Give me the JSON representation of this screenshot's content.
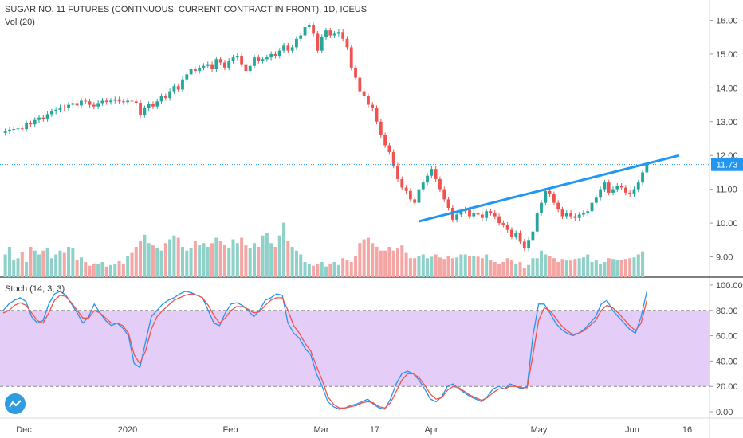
{
  "header": {
    "title": "SUGAR NO. 11 FUTURES (CONTINUOUS: CURRENT CONTRACT IN FRONT), 1D, ICEUS",
    "volume_legend": "Vol (20)",
    "stoch_legend": "Stoch (14, 3, 3)"
  },
  "colors": {
    "up": "#26a69a",
    "down": "#ef5350",
    "up_vol": "#8fd0c8",
    "down_vol": "#f4a6a4",
    "trendline": "#2196f3",
    "price_tag": "#2196f3",
    "stoch_k": "#2196f3",
    "stoch_d": "#ef5350",
    "stoch_band": "#e4cdf7"
  },
  "chart_data": [
    {
      "type": "candlestick",
      "title": "SUGAR NO. 11 FUTURES (CONTINUOUS: CURRENT CONTRACT IN FRONT), 1D, ICEUS",
      "ylim": [
        8.4,
        16.6
      ],
      "y_ticks": [
        "16.00",
        "15.00",
        "14.00",
        "13.00",
        "12.00",
        "11.00",
        "10.00",
        "9.00"
      ],
      "x_ticks": [
        "Dec",
        "2020",
        "Feb",
        "Mar",
        "17",
        "Apr",
        "May",
        "Jun",
        "16"
      ],
      "last_price": "11.73",
      "trendline": [
        [
          10.05,
          0
        ],
        [
          12.0,
          1
        ]
      ],
      "close": [
        12.72,
        12.76,
        12.78,
        12.8,
        12.78,
        12.95,
        12.92,
        13.05,
        13.12,
        13.08,
        13.22,
        13.3,
        13.35,
        13.42,
        13.4,
        13.5,
        13.55,
        13.48,
        13.62,
        13.6,
        13.5,
        13.45,
        13.55,
        13.62,
        13.58,
        13.62,
        13.66,
        13.6,
        13.58,
        13.62,
        13.6,
        13.56,
        13.2,
        13.4,
        13.52,
        13.45,
        13.6,
        13.75,
        13.7,
        13.9,
        14.05,
        13.95,
        14.25,
        14.4,
        14.55,
        14.5,
        14.6,
        14.65,
        14.7,
        14.55,
        14.85,
        14.75,
        14.6,
        14.8,
        14.9,
        14.95,
        14.7,
        14.5,
        14.65,
        14.9,
        14.8,
        14.85,
        14.9,
        15.0,
        14.95,
        15.1,
        15.25,
        15.1,
        15.2,
        15.45,
        15.55,
        15.8,
        15.85,
        15.6,
        15.1,
        15.5,
        15.7,
        15.55,
        15.6,
        15.65,
        15.45,
        15.2,
        14.6,
        14.3,
        13.9,
        13.75,
        13.5,
        13.4,
        13.0,
        12.6,
        12.3,
        12.1,
        11.7,
        11.3,
        11.05,
        10.95,
        10.7,
        10.6,
        11.0,
        11.2,
        11.4,
        11.6,
        11.3,
        11.0,
        10.7,
        10.45,
        10.1,
        10.25,
        10.35,
        10.4,
        10.2,
        10.3,
        10.25,
        10.15,
        10.35,
        10.3,
        10.2,
        10.0,
        9.95,
        9.8,
        9.6,
        9.7,
        9.45,
        9.25,
        9.5,
        9.75,
        10.3,
        10.6,
        10.95,
        10.85,
        10.6,
        10.4,
        10.2,
        10.3,
        10.2,
        10.15,
        10.25,
        10.3,
        10.35,
        10.6,
        10.75,
        11.0,
        11.2,
        10.9,
        11.0,
        11.1,
        11.05,
        10.9,
        10.85,
        11.0,
        11.2,
        11.5,
        11.73
      ]
    },
    {
      "type": "bar",
      "title": "Vol (20)",
      "values": [
        30,
        40,
        22,
        25,
        33,
        20,
        40,
        35,
        30,
        35,
        38,
        25,
        30,
        35,
        32,
        40,
        38,
        22,
        26,
        20,
        15,
        18,
        18,
        20,
        14,
        16,
        18,
        21,
        18,
        28,
        32,
        40,
        48,
        56,
        45,
        42,
        38,
        35,
        45,
        50,
        55,
        52,
        40,
        35,
        38,
        48,
        42,
        45,
        40,
        45,
        52,
        48,
        42,
        38,
        50,
        45,
        52,
        42,
        38,
        45,
        40,
        55,
        58,
        45,
        40,
        55,
        72,
        48,
        40,
        35,
        30,
        20,
        18,
        15,
        18,
        20,
        14,
        18,
        20,
        16,
        25,
        22,
        20,
        28,
        45,
        50,
        52,
        45,
        40,
        35,
        35,
        40,
        35,
        38,
        42,
        32,
        25,
        25,
        28,
        30,
        25,
        27,
        30,
        26,
        24,
        28,
        25,
        26,
        30,
        30,
        28,
        28,
        27,
        25,
        30,
        22,
        20,
        18,
        20,
        25,
        22,
        18,
        20,
        12,
        16,
        25,
        25,
        35,
        30,
        28,
        25,
        20,
        24,
        22,
        22,
        24,
        25,
        26,
        30,
        20,
        22,
        18,
        20,
        25,
        24,
        22,
        23,
        24,
        25,
        26,
        30,
        34
      ]
    },
    {
      "type": "line",
      "title": "Stoch (14, 3, 3)",
      "ylim": [
        -5,
        105
      ],
      "y_ticks": [
        "100.00",
        "80.00",
        "60.00",
        "40.00",
        "20.00",
        "0.00"
      ],
      "band": [
        20,
        80
      ],
      "series": [
        {
          "values": [
            80,
            85,
            88,
            90,
            87,
            75,
            70,
            72,
            85,
            93,
            95,
            92,
            85,
            78,
            70,
            75,
            85,
            78,
            72,
            68,
            70,
            66,
            60,
            38,
            35,
            55,
            75,
            80,
            85,
            88,
            90,
            93,
            95,
            94,
            92,
            90,
            80,
            70,
            68,
            78,
            85,
            86,
            84,
            80,
            75,
            80,
            88,
            90,
            93,
            92,
            70,
            62,
            58,
            50,
            45,
            30,
            20,
            8,
            4,
            2,
            3,
            5,
            6,
            8,
            10,
            6,
            3,
            2,
            10,
            22,
            30,
            32,
            30,
            25,
            18,
            10,
            8,
            12,
            20,
            22,
            18,
            15,
            12,
            10,
            8,
            12,
            18,
            20,
            18,
            22,
            20,
            18,
            20,
            60,
            85,
            85,
            78,
            70,
            65,
            62,
            60,
            62,
            65,
            70,
            75,
            85,
            88,
            80,
            75,
            70,
            65,
            62,
            75,
            95
          ]
        },
        {
          "values": [
            78,
            80,
            84,
            86,
            84,
            78,
            72,
            70,
            78,
            88,
            92,
            91,
            86,
            80,
            74,
            74,
            80,
            78,
            74,
            70,
            70,
            68,
            62,
            45,
            38,
            48,
            65,
            75,
            80,
            84,
            88,
            90,
            92,
            93,
            92,
            90,
            84,
            76,
            70,
            74,
            80,
            83,
            83,
            81,
            78,
            79,
            84,
            88,
            90,
            90,
            80,
            68,
            62,
            54,
            48,
            36,
            25,
            12,
            6,
            3,
            3,
            4,
            5,
            7,
            8,
            7,
            4,
            3,
            7,
            16,
            25,
            30,
            30,
            27,
            21,
            14,
            10,
            11,
            17,
            20,
            19,
            16,
            13,
            11,
            9,
            11,
            15,
            18,
            18,
            20,
            20,
            19,
            19,
            45,
            72,
            82,
            80,
            74,
            68,
            64,
            61,
            62,
            64,
            68,
            72,
            80,
            84,
            82,
            78,
            73,
            68,
            64,
            70,
            88
          ]
        }
      ]
    }
  ]
}
